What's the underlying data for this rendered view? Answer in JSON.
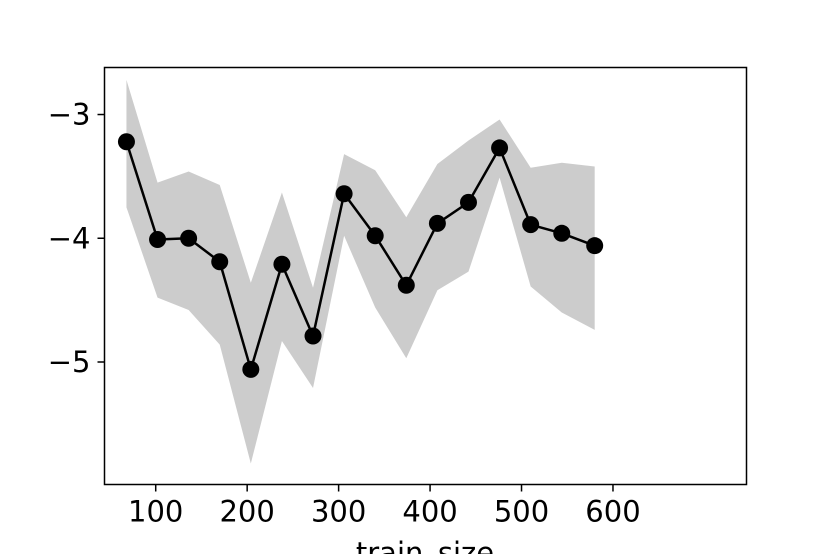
{
  "chart_data": {
    "type": "line",
    "title": "",
    "xlabel": "train_size",
    "ylabel": "",
    "xlim": [
      44,
      746
    ],
    "ylim": [
      -5.99,
      -2.62
    ],
    "xticks": [
      100,
      200,
      300,
      400,
      500,
      600
    ],
    "xtick_labels": [
      "100",
      "200",
      "300",
      "400",
      "500",
      "600"
    ],
    "yticks": [
      -3,
      -4,
      -5
    ],
    "ytick_labels": [
      "−3",
      "−4",
      "−5"
    ],
    "grid": false,
    "legend": "none",
    "colors": {
      "line": "#000000",
      "band": "#cccccc",
      "marker": "#000000"
    },
    "series": [
      {
        "x": [
          68,
          102,
          136,
          170,
          204,
          238,
          272,
          306,
          340,
          374,
          408,
          442,
          476,
          510,
          544,
          580
        ],
        "values": [
          -3.22,
          -4.01,
          -4.0,
          -4.19,
          -5.06,
          -4.21,
          -4.79,
          -3.64,
          -3.98,
          -4.38,
          -3.88,
          -3.71,
          -3.27,
          -3.89,
          -3.96,
          -4.06
        ],
        "upper": [
          -2.72,
          -3.55,
          -3.46,
          -3.57,
          -4.36,
          -3.63,
          -4.4,
          -3.32,
          -3.45,
          -3.83,
          -3.4,
          -3.21,
          -3.04,
          -3.43,
          -3.39,
          -3.42
        ],
        "lower": [
          -3.75,
          -4.48,
          -4.58,
          -4.86,
          -5.82,
          -4.83,
          -5.21,
          -3.98,
          -4.56,
          -4.97,
          -4.42,
          -4.27,
          -3.51,
          -4.39,
          -4.6,
          -4.74
        ]
      }
    ]
  }
}
